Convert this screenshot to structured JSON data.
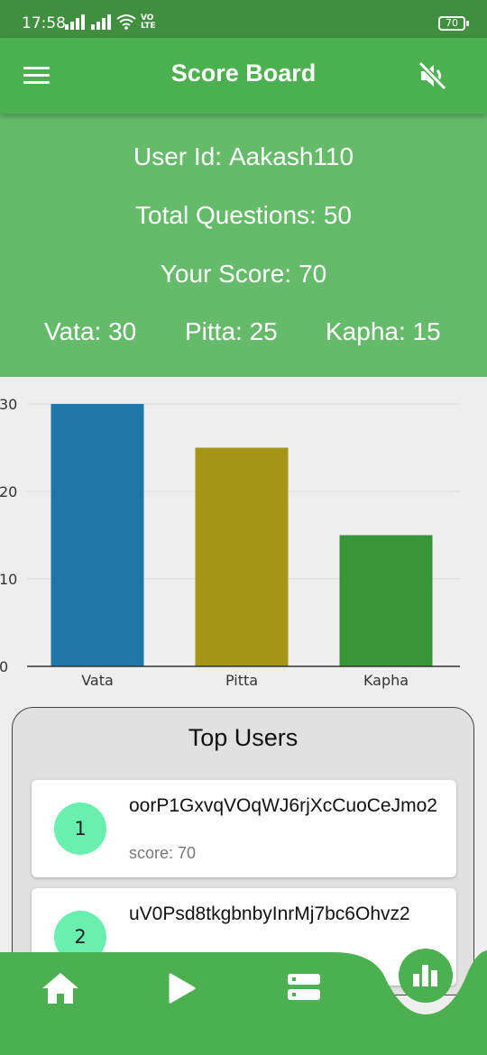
{
  "status_bar": {
    "time": "17:58",
    "battery": "70",
    "network_label": "VO LTE"
  },
  "app_bar": {
    "title": "Score Board",
    "menu_icon": "hamburger-menu-icon",
    "sound_icon": "volume-mute-icon"
  },
  "score": {
    "user_id_label": "User Id:",
    "user_id": "Aakash110",
    "total_questions_label": "Total Questions:",
    "total_questions": "50",
    "your_score_label": "Your Score:",
    "your_score": "70",
    "vata_label": "Vata:",
    "vata": "30",
    "pitta_label": "Pitta:",
    "pitta": "25",
    "kapha_label": "Kapha:",
    "kapha": "15"
  },
  "chart_data": {
    "type": "bar",
    "categories": [
      "Vata",
      "Pitta",
      "Kapha"
    ],
    "values": [
      30,
      25,
      15
    ],
    "colors": [
      "#1f77a8",
      "#a59615",
      "#389638"
    ],
    "yticks": [
      0,
      10,
      20,
      30
    ],
    "ylim": [
      0,
      30
    ],
    "grid": true
  },
  "top_users": {
    "title": "Top Users",
    "users": [
      {
        "rank": "1",
        "name": "oorP1GxvqVOqWJ6rjXcCuoCeJmo2",
        "score": "score: 70"
      },
      {
        "rank": "2",
        "name": "uV0Psd8tkgbnbyInrMj7bc6Ohvz2",
        "score": ""
      }
    ]
  },
  "bottom_nav": {
    "items": [
      "home-icon",
      "play-icon",
      "list-icon"
    ],
    "active": "bar-chart-icon",
    "accent": "#4caf50"
  }
}
